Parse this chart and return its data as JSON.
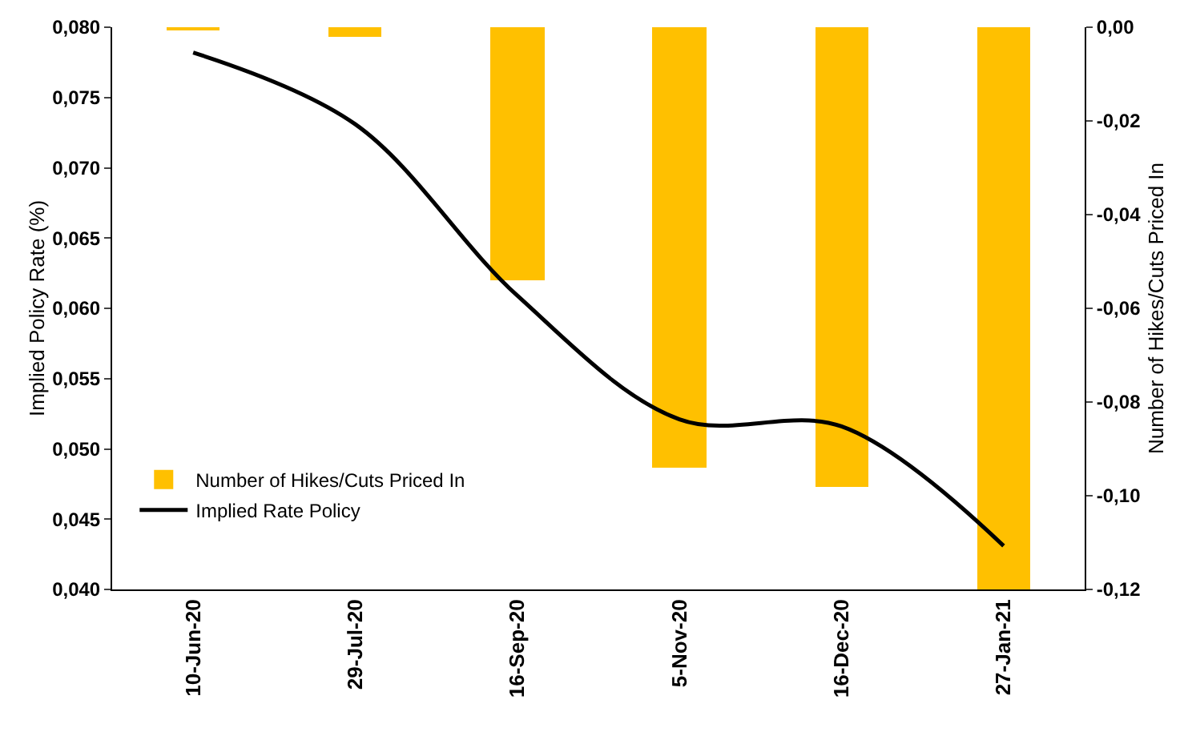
{
  "chart_data": {
    "type": "bar",
    "categories": [
      "10-Jun-20",
      "29-Jul-20",
      "16-Sep-20",
      "5-Nov-20",
      "16-Dec-20",
      "27-Jan-21"
    ],
    "ylabel": "Implied Policy Rate (%)",
    "y2label": "Number of Hikes/Cuts Priced In",
    "ylim": [
      0.04,
      0.08
    ],
    "yticks": [
      {
        "value": 0.04,
        "label": "0,040"
      },
      {
        "value": 0.045,
        "label": "0,045"
      },
      {
        "value": 0.05,
        "label": "0,050"
      },
      {
        "value": 0.055,
        "label": "0,055"
      },
      {
        "value": 0.06,
        "label": "0,060"
      },
      {
        "value": 0.065,
        "label": "0,065"
      },
      {
        "value": 0.07,
        "label": "0,070"
      },
      {
        "value": 0.075,
        "label": "0,075"
      },
      {
        "value": 0.08,
        "label": "0,080"
      }
    ],
    "y2lim": [
      -0.12,
      0
    ],
    "y2ticks": [
      {
        "value": -0.12,
        "label": "-0,12"
      },
      {
        "value": -0.1,
        "label": "-0,10"
      },
      {
        "value": -0.08,
        "label": "-0,08"
      },
      {
        "value": -0.06,
        "label": "-0,06"
      },
      {
        "value": -0.04,
        "label": "-0,04"
      },
      {
        "value": -0.02,
        "label": "-0,02"
      },
      {
        "value": 0,
        "label": "0,00"
      }
    ],
    "series": [
      {
        "name": "Number of Hikes/Cuts Priced In",
        "axis": "y2",
        "color": "#ffc000",
        "values": [
          -0.0005,
          -0.002,
          -0.054,
          -0.094,
          -0.098,
          -0.12
        ]
      },
      {
        "name": "Implied Rate Policy",
        "type": "line",
        "color": "#000000",
        "values": [
          0.0782,
          0.0731,
          0.0609,
          0.0521,
          0.0516,
          0.0431
        ]
      }
    ],
    "grid": false,
    "legend": "bottom left",
    "marker": "none",
    "line_style": "solid"
  }
}
